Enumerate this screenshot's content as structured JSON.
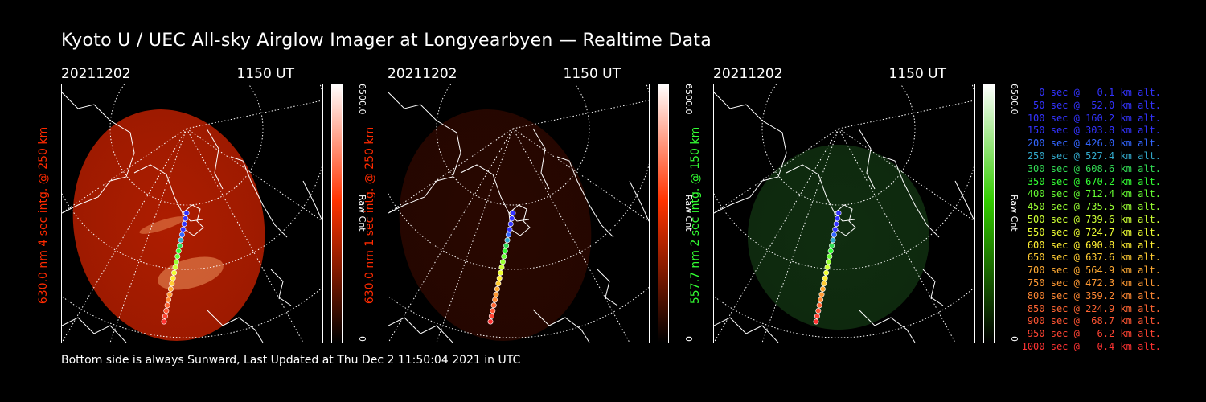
{
  "title": "Kyoto U / UEC All-sky Airglow Imager at Longyearbyen — Realtime Data",
  "footer": "Bottom side is always Sunward, Last Updated at Thu Dec  2 11:50:04 2021 in UTC",
  "panels": [
    {
      "date": "20211202",
      "time": "1150 UT",
      "side_label": "630.0 nm 4 sec intg. @ 250 km",
      "label_color": "#ff2a00",
      "colorbar_max": "6500.0",
      "colorbar_min": "0",
      "colorbar_unit": "Raw Cnt",
      "colorbar_color": "#ff3300",
      "image_color": "#cc2200",
      "brightness": 0.85
    },
    {
      "date": "20211202",
      "time": "1150 UT",
      "side_label": "630.0 nm 1 sec intg. @ 250 km",
      "label_color": "#ff2a00",
      "colorbar_max": "6500.0",
      "colorbar_min": "0",
      "colorbar_unit": "Raw Cnt",
      "colorbar_color": "#ff3300",
      "image_color": "#5a1000",
      "brightness": 0.45
    },
    {
      "date": "20211202",
      "time": "1150 UT",
      "side_label": "557.7 nm 2 sec intg. @ 150 km",
      "label_color": "#33ff33",
      "colorbar_max": "6500.0",
      "colorbar_min": "0",
      "colorbar_unit": "Raw Cnt",
      "colorbar_color": "#33cc00",
      "image_color": "#1f5a1f",
      "brightness": 0.5
    }
  ],
  "trajectory_legend": [
    {
      "text": "0 sec @   0.1 km alt.",
      "color": "#3333ff"
    },
    {
      "text": "50 sec @  52.0 km alt.",
      "color": "#3333ff"
    },
    {
      "text": "100 sec @ 160.2 km alt.",
      "color": "#3333ff"
    },
    {
      "text": "150 sec @ 303.8 km alt.",
      "color": "#3333ff"
    },
    {
      "text": "200 sec @ 426.0 km alt.",
      "color": "#3366ff"
    },
    {
      "text": "250 sec @ 527.4 km alt.",
      "color": "#33aacc"
    },
    {
      "text": "300 sec @ 608.6 km alt.",
      "color": "#33dd55"
    },
    {
      "text": "350 sec @ 670.2 km alt.",
      "color": "#33ff33"
    },
    {
      "text": "400 sec @ 712.4 km alt.",
      "color": "#66ff33"
    },
    {
      "text": "450 sec @ 735.5 km alt.",
      "color": "#99ff33"
    },
    {
      "text": "500 sec @ 739.6 km alt.",
      "color": "#ccff33"
    },
    {
      "text": "550 sec @ 724.7 km alt.",
      "color": "#eeff33"
    },
    {
      "text": "600 sec @ 690.8 km alt.",
      "color": "#ffee33"
    },
    {
      "text": "650 sec @ 637.6 km alt.",
      "color": "#ffcc33"
    },
    {
      "text": "700 sec @ 564.9 km alt.",
      "color": "#ffaa33"
    },
    {
      "text": "750 sec @ 472.3 km alt.",
      "color": "#ff9933"
    },
    {
      "text": "800 sec @ 359.2 km alt.",
      "color": "#ff8833"
    },
    {
      "text": "850 sec @ 224.9 km alt.",
      "color": "#ff6633"
    },
    {
      "text": "900 sec @  68.7 km alt.",
      "color": "#ff5533"
    },
    {
      "text": "950 sec @   6.2 km alt.",
      "color": "#ff4433"
    },
    {
      "text": "1000 sec @   0.4 km alt.",
      "color": "#ff3333"
    }
  ]
}
